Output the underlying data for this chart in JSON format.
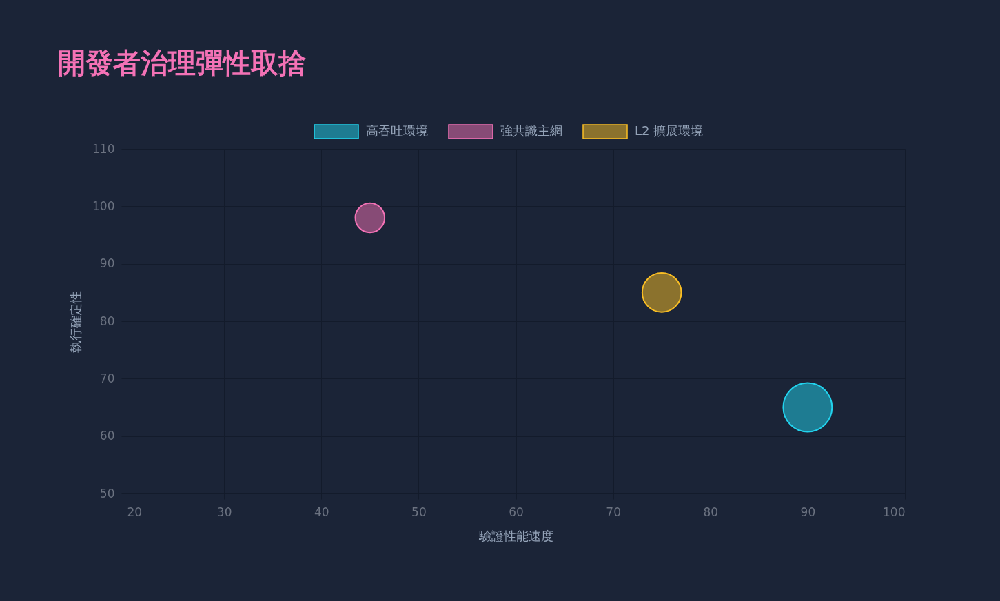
{
  "chart_data": {
    "type": "bubble",
    "title": "開發者治理彈性取捨",
    "xlabel": "驗證性能速度",
    "ylabel": "執行確定性",
    "series": [
      {
        "name": "高吞吐環境",
        "color": "#22d3ee",
        "x": [
          90
        ],
        "values": [
          65
        ],
        "sizes": [
          1
        ]
      },
      {
        "name": "強共識主網",
        "color": "#f472b6",
        "x": [
          45
        ],
        "values": [
          98
        ],
        "sizes": [
          0.36
        ]
      },
      {
        "name": "L2 擴展環境",
        "color": "#fbbf24",
        "x": [
          75
        ],
        "values": [
          85
        ],
        "sizes": [
          0.64
        ]
      }
    ],
    "xlim": [
      20,
      100
    ],
    "xticks": [
      20,
      30,
      40,
      50,
      60,
      70,
      80,
      90,
      100
    ],
    "ylim": [
      50,
      110
    ],
    "yticks": [
      50,
      60,
      70,
      80,
      90,
      100,
      110
    ],
    "grid": true,
    "legend": "top"
  }
}
